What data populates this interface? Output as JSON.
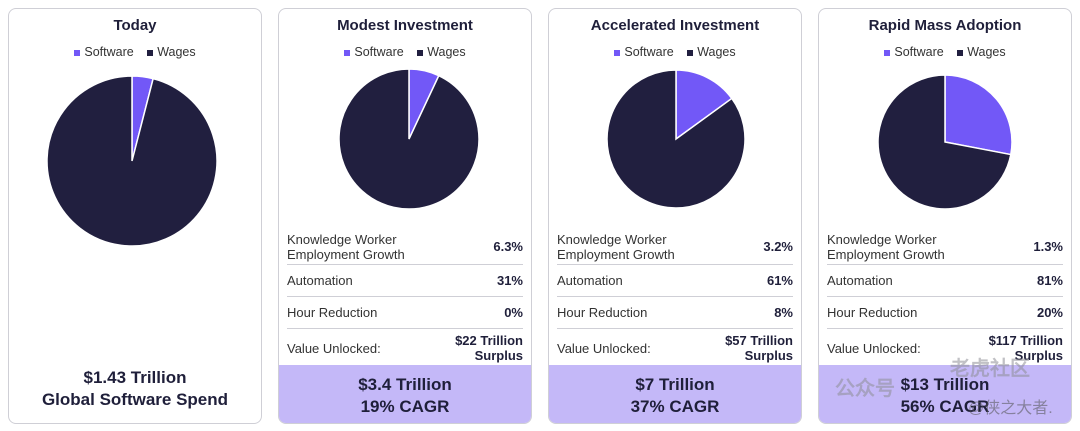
{
  "colors": {
    "software": "#7258f7",
    "wages": "#211f3f",
    "footer": "#c4b8f8"
  },
  "legend": {
    "software": "Software",
    "wages": "Wages"
  },
  "chart_data": [
    {
      "type": "pie",
      "title": "Today",
      "labels": [
        "Software",
        "Wages"
      ],
      "values": [
        4,
        96
      ]
    },
    {
      "type": "pie",
      "title": "Modest Investment",
      "labels": [
        "Software",
        "Wages"
      ],
      "values": [
        7,
        93
      ]
    },
    {
      "type": "pie",
      "title": "Accelerated Investment",
      "labels": [
        "Software",
        "Wages"
      ],
      "values": [
        15,
        85
      ]
    },
    {
      "type": "pie",
      "title": "Rapid Mass Adoption",
      "labels": [
        "Software",
        "Wages"
      ],
      "values": [
        28,
        72
      ]
    }
  ],
  "cards": [
    {
      "title": "Today",
      "footer": {
        "line1": "$1.43 Trillion",
        "line2": "Global Software Spend"
      }
    },
    {
      "title": "Modest Investment",
      "metrics": [
        {
          "label": "Knowledge Worker Employment Growth",
          "value": "6.3%"
        },
        {
          "label": "Automation",
          "value": "31%"
        },
        {
          "label": "Hour Reduction",
          "value": "0%"
        },
        {
          "label": "Value Unlocked:",
          "value": "$22 Trillion Surplus"
        }
      ],
      "footer": {
        "line1": "$3.4 Trillion",
        "line2": "19% CAGR"
      }
    },
    {
      "title": "Accelerated Investment",
      "metrics": [
        {
          "label": "Knowledge Worker Employment Growth",
          "value": "3.2%"
        },
        {
          "label": "Automation",
          "value": "61%"
        },
        {
          "label": "Hour Reduction",
          "value": "8%"
        },
        {
          "label": "Value Unlocked:",
          "value": "$57 Trillion Surplus"
        }
      ],
      "footer": {
        "line1": "$7 Trillion",
        "line2": "37% CAGR"
      }
    },
    {
      "title": "Rapid Mass Adoption",
      "metrics": [
        {
          "label": "Knowledge Worker Employment Growth",
          "value": "1.3%"
        },
        {
          "label": "Automation",
          "value": "81%"
        },
        {
          "label": "Hour Reduction",
          "value": "20%"
        },
        {
          "label": "Value Unlocked:",
          "value": "$117 Trillion Surplus"
        }
      ],
      "footer": {
        "line1": "$13 Trillion",
        "line2": "56% CAGR"
      }
    }
  ],
  "watermark": {
    "text1": "公众号",
    "text2": "老虎社区",
    "text3": "@侠之大者."
  }
}
